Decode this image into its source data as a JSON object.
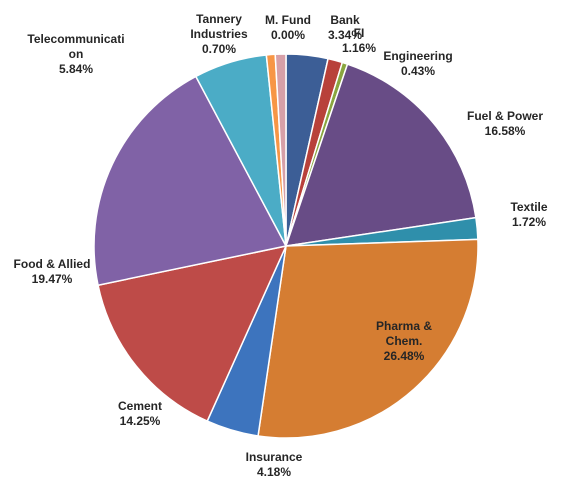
{
  "chart_data": {
    "type": "pie",
    "start_angle_deg": 0,
    "direction": "clockwise",
    "slices": [
      {
        "label_lines": [
          "M. Fund"
        ],
        "pct_text": "0.00%",
        "value": 0.0,
        "color": "#4A7EBB"
      },
      {
        "label_lines": [
          "Bank"
        ],
        "pct_text": "3.34%",
        "value": 3.34,
        "color": "#3C5E96"
      },
      {
        "label_lines": [
          "FI"
        ],
        "pct_text": "1.16%",
        "value": 1.16,
        "color": "#B8413A"
      },
      {
        "label_lines": [
          "Engineering"
        ],
        "pct_text": "0.43%",
        "value": 0.43,
        "color": "#8AA63F"
      },
      {
        "label_lines": [
          "Fuel & Power"
        ],
        "pct_text": "16.58%",
        "value": 16.58,
        "color": "#684C86"
      },
      {
        "label_lines": [
          "Textile"
        ],
        "pct_text": "1.72%",
        "value": 1.72,
        "color": "#2F8FAB"
      },
      {
        "label_lines": [
          "Pharma &",
          "Chem."
        ],
        "pct_text": "26.48%",
        "value": 26.48,
        "color": "#D57D32"
      },
      {
        "label_lines": [
          "Insurance"
        ],
        "pct_text": "4.18%",
        "value": 4.18,
        "color": "#3D74BE"
      },
      {
        "label_lines": [
          "Cement"
        ],
        "pct_text": "14.25%",
        "value": 14.25,
        "color": "#BE4B48"
      },
      {
        "label_lines": [
          "Food & Allied"
        ],
        "pct_text": "19.47%",
        "value": 19.47,
        "color": "#8062A6"
      },
      {
        "label_lines": [
          "Telecommunicati",
          "on"
        ],
        "pct_text": "5.84%",
        "value": 5.84,
        "color": "#4BACC6"
      },
      {
        "label_lines": [
          "Tannery",
          "Industries"
        ],
        "pct_text": "0.70%",
        "value": 0.7,
        "color": "#F79646"
      },
      {
        "label_lines": [],
        "pct_text": "",
        "value": 0.85,
        "color": "#D7A0A8"
      }
    ]
  }
}
